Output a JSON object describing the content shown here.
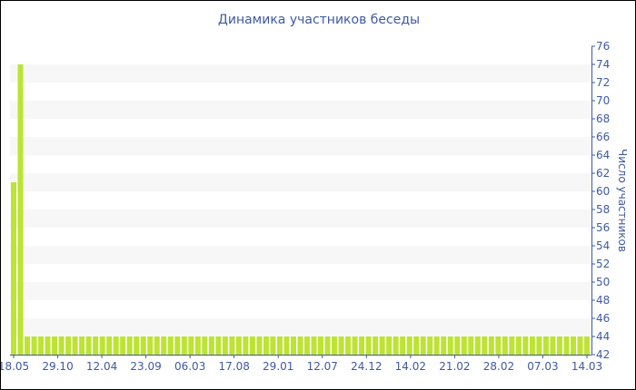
{
  "chart_data": {
    "type": "bar",
    "title": "Динамика участников беседы",
    "ylabel": "Число участников",
    "xlabel": "",
    "ylim": [
      42,
      76
    ],
    "yticks": [
      42,
      44,
      46,
      48,
      50,
      52,
      54,
      56,
      58,
      60,
      62,
      64,
      66,
      68,
      70,
      72,
      74,
      76
    ],
    "y_axis_side": "right",
    "grid": "alternating horizontal bands",
    "xtick_labels": [
      "18.05",
      "29.10",
      "12.04",
      "23.09",
      "06.03",
      "17.08",
      "29.01",
      "12.07",
      "24.12",
      "14.02",
      "21.02",
      "28.02",
      "07.03",
      "14.03"
    ],
    "values": [
      61,
      74,
      44,
      44,
      44,
      44,
      44,
      44,
      44,
      44,
      44,
      44,
      44,
      44,
      44,
      44,
      44,
      44,
      44,
      44,
      44,
      44,
      44,
      44,
      44,
      44,
      44,
      44,
      44,
      44,
      44,
      44,
      44,
      44,
      44,
      44,
      44,
      44,
      44,
      44,
      44,
      44,
      44,
      44,
      44,
      44,
      44,
      44,
      44,
      44,
      44,
      44,
      44,
      44,
      44,
      44,
      44,
      44,
      44,
      44,
      44,
      44,
      44,
      44,
      44,
      44,
      44,
      44,
      44,
      44,
      44,
      44,
      44,
      44,
      44,
      44,
      44,
      44,
      44,
      44,
      44,
      44,
      44,
      44,
      44
    ],
    "colors": {
      "bar": "#bde333",
      "text": "#3e5aa0",
      "band": "#f7f7f7"
    }
  }
}
